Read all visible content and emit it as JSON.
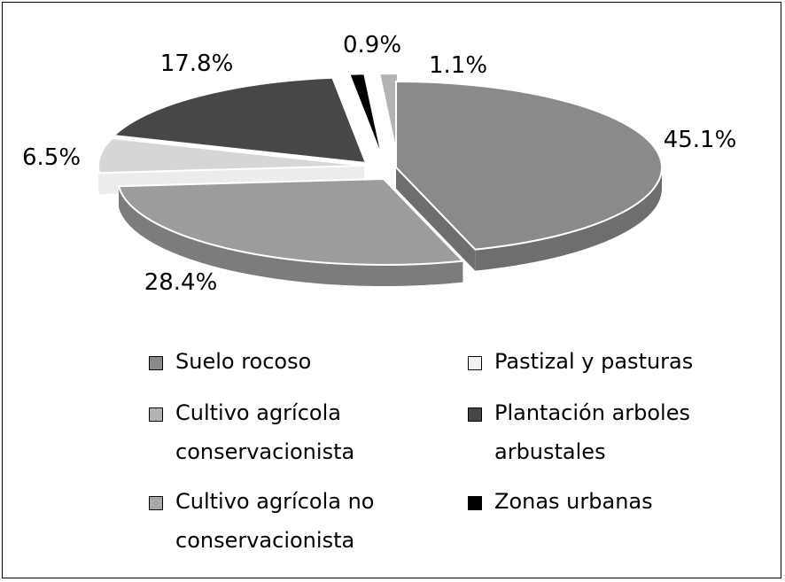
{
  "chart_data": {
    "type": "pie",
    "title": "",
    "slices": [
      {
        "label": "Suelo rocoso",
        "value": 45.1,
        "data_label": "45.1%",
        "color": "#8a8a8a",
        "side": "#6e6e6e"
      },
      {
        "label": "Cultivo agrícola no conservacionista",
        "value": 28.4,
        "data_label": "28.4%",
        "color": "#9c9c9c",
        "side": "#7c7c7c"
      },
      {
        "label": "Pastizal y pasturas",
        "value": 6.5,
        "data_label": "6.5%",
        "color": "#d6d6d6",
        "side": "#ececec"
      },
      {
        "label": "Plantación arboles arbustales",
        "value": 17.8,
        "data_label": "17.8%",
        "color": "#474747",
        "side": "#2e2e2e"
      },
      {
        "label": "Zonas urbanas",
        "value": 0.9,
        "data_label": "0.9%",
        "color": "#000000",
        "side": "#000000"
      },
      {
        "label": "Cultivo agrícola conservacionista",
        "value": 1.1,
        "data_label": "1.1%",
        "color": "#b3b3b3",
        "side": "#9a9a9a"
      }
    ],
    "legend": {
      "placement": "bottom",
      "items": [
        {
          "label": "Suelo rocoso",
          "color": "#8a8a8a"
        },
        {
          "label": "Pastizal y pasturas",
          "color": "#f2f2f2"
        },
        {
          "label": "Cultivo agrícola\nconservacionista",
          "color": "#b3b3b3"
        },
        {
          "label": "Plantación arboles\narbustales",
          "color": "#474747"
        },
        {
          "label": "Cultivo agrícola no\nconservacionista",
          "color": "#a6a6a6"
        },
        {
          "label": "Zonas urbanas",
          "color": "#000000"
        }
      ]
    }
  }
}
